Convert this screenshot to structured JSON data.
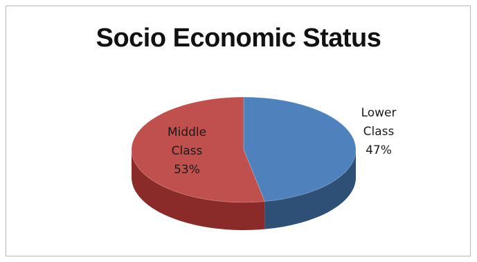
{
  "chart_data": {
    "type": "pie",
    "title": "Socio Economic Status",
    "slices": [
      {
        "name": "Lower Class",
        "value": 47,
        "label_lines": [
          "Lower",
          "Class",
          "47%"
        ],
        "color": "#4f81bd",
        "side_color": "#2e4f76"
      },
      {
        "name": "Middle Class",
        "value": 53,
        "label_lines": [
          "Middle",
          "Class",
          "53%"
        ],
        "color": "#c0504d",
        "side_color": "#8b2b29"
      }
    ],
    "style": "3d",
    "legend": "none"
  }
}
